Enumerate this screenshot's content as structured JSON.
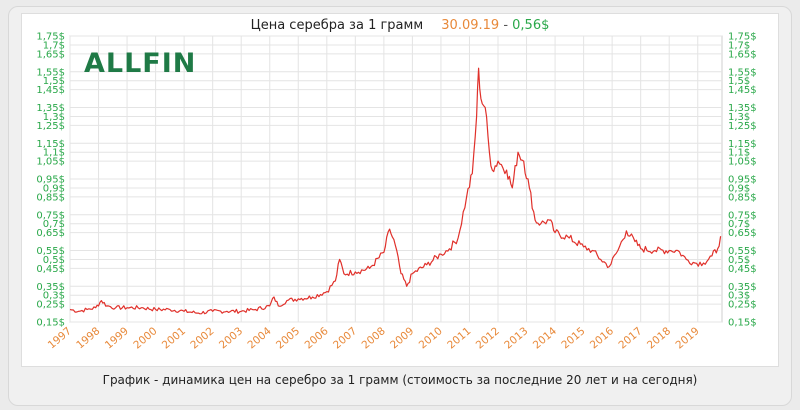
{
  "header": {
    "title": "Цена серебра за 1 грамм",
    "date": "30.09.19",
    "separator": "-",
    "price": "0,56$"
  },
  "logo": {
    "text": "ALLFIN"
  },
  "caption": "График - динамика цен на серебро за 1 грамм (стоимость за последние 20 лет и на сегодня)",
  "colors": {
    "line": "#e0302a",
    "y_tick_labels": "#2aa84a",
    "x_tick_labels": "#e8893a",
    "grid": "#e4e4e4",
    "logo": "#1f7a46"
  },
  "chart_data": {
    "type": "line",
    "title": "Цена серебра за 1 грамм",
    "xlabel": "",
    "ylabel": "",
    "xlim": [
      1997,
      2019.85
    ],
    "ylim": [
      0.15,
      1.75
    ],
    "grid": true,
    "y_axis_right_mirror": true,
    "x_ticks": [
      "1997",
      "1998",
      "1999",
      "2000",
      "2001",
      "2002",
      "2003",
      "2004",
      "2005",
      "2006",
      "2007",
      "2008",
      "2009",
      "2010",
      "2011",
      "2012",
      "2013",
      "2014",
      "2015",
      "2016",
      "2017",
      "2018",
      "2019"
    ],
    "y_ticks": [
      "0,15$",
      "0,25$",
      "0,3$",
      "0,35$",
      "0,45$",
      "0,5$",
      "0,55$",
      "0,65$",
      "0,7$",
      "0,75$",
      "0,85$",
      "0,9$",
      "0,95$",
      "1,05$",
      "1,1$",
      "1,15$",
      "1,25$",
      "1,3$",
      "1,35$",
      "1,45$",
      "1,5$",
      "1,55$",
      "1,65$",
      "1,7$",
      "1,75$"
    ],
    "series": [
      {
        "x": [
          1997.0,
          1997.3,
          1997.6,
          1997.9,
          1998.1,
          1998.3,
          1998.6,
          1999.0,
          1999.5,
          2000.0,
          2000.5,
          2001.0,
          2001.5,
          2002.0,
          2002.5,
          2003.0,
          2003.5,
          2004.0,
          2004.15,
          2004.3,
          2004.6,
          2005.0,
          2005.5,
          2006.0,
          2006.3,
          2006.45,
          2006.6,
          2007.0,
          2007.5,
          2008.0,
          2008.2,
          2008.4,
          2008.6,
          2008.8,
          2009.0,
          2009.5,
          2010.0,
          2010.3,
          2010.6,
          2010.9,
          2011.1,
          2011.25,
          2011.32,
          2011.4,
          2011.55,
          2011.7,
          2011.8,
          2012.0,
          2012.3,
          2012.5,
          2012.7,
          2012.9,
          2013.1,
          2013.3,
          2013.5,
          2013.8,
          2014.0,
          2014.5,
          2015.0,
          2015.3,
          2015.6,
          2015.9,
          2016.2,
          2016.5,
          2016.8,
          2017.0,
          2017.5,
          2018.0,
          2018.3,
          2018.6,
          2018.9,
          2019.2,
          2019.5,
          2019.7,
          2019.8
        ],
        "values": [
          0.22,
          0.21,
          0.22,
          0.23,
          0.27,
          0.24,
          0.23,
          0.23,
          0.23,
          0.22,
          0.22,
          0.21,
          0.2,
          0.21,
          0.21,
          0.21,
          0.22,
          0.24,
          0.29,
          0.24,
          0.27,
          0.28,
          0.29,
          0.32,
          0.38,
          0.5,
          0.42,
          0.43,
          0.45,
          0.54,
          0.67,
          0.58,
          0.42,
          0.35,
          0.42,
          0.47,
          0.53,
          0.56,
          0.62,
          0.85,
          0.98,
          1.3,
          1.57,
          1.4,
          1.35,
          1.1,
          1.0,
          1.05,
          1.0,
          0.9,
          1.1,
          1.05,
          0.9,
          0.72,
          0.7,
          0.72,
          0.65,
          0.62,
          0.57,
          0.55,
          0.5,
          0.46,
          0.55,
          0.66,
          0.6,
          0.56,
          0.55,
          0.55,
          0.55,
          0.5,
          0.48,
          0.48,
          0.52,
          0.56,
          0.63
        ]
      }
    ]
  }
}
